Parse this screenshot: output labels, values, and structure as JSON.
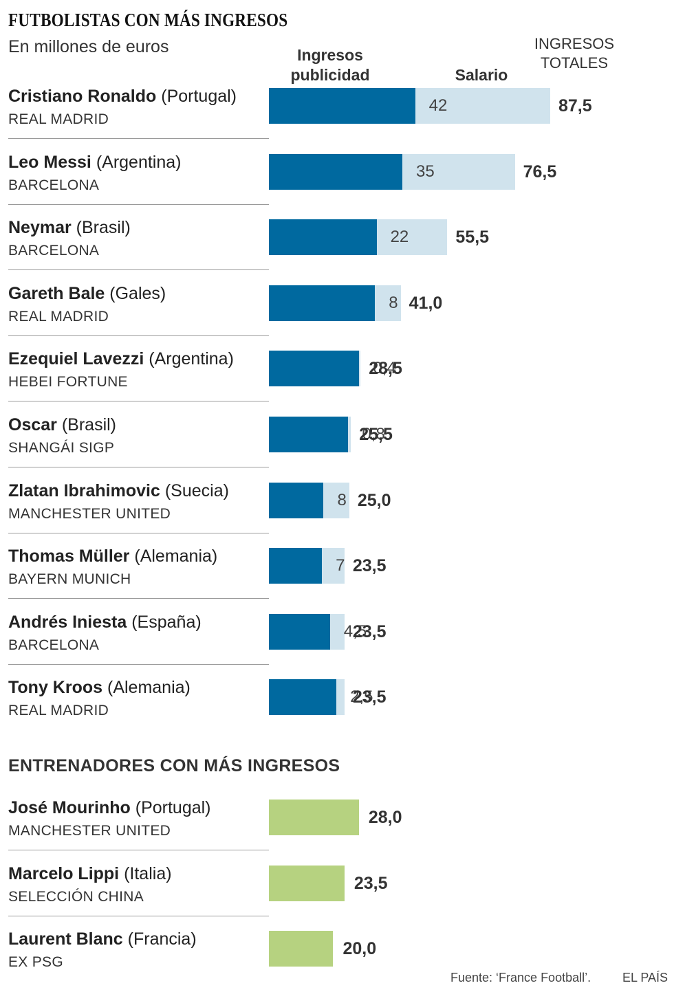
{
  "title": "FUTBOLISTAS CON MÁS INGRESOS",
  "subtitle": "En millones de euros",
  "legend": {
    "publicidad": "Ingresos\npublicidad",
    "salario": "Salario",
    "totales": "INGRESOS\nTOTALES"
  },
  "colors": {
    "publicidad": "#00699f",
    "salario": "#d0e3ed",
    "entrenadores": "#b6d280"
  },
  "coaches_title": "ENTRENADORES CON MÁS INGRESOS",
  "source": "Fuente: ‘France Football’.",
  "brand": "EL PAÍS",
  "chart_data": [
    {
      "type": "bar",
      "orientation": "horizontal",
      "stacked": true,
      "title": "FUTBOLISTAS CON MÁS INGRESOS",
      "series_names": [
        "Ingresos publicidad",
        "Salario"
      ],
      "rows": [
        {
          "name": "Cristiano Ronaldo",
          "country": "(Portugal)",
          "club": "REAL MADRID",
          "publicidad": 45.5,
          "salario": 42,
          "salario_label": "42",
          "total": 87.5,
          "total_label": "87,5"
        },
        {
          "name": "Leo Messi",
          "country": "(Argentina)",
          "club": "BARCELONA",
          "publicidad": 41.5,
          "salario": 35,
          "salario_label": "35",
          "total": 76.5,
          "total_label": "76,5"
        },
        {
          "name": "Neymar",
          "country": "(Brasil)",
          "club": "BARCELONA",
          "publicidad": 33.5,
          "salario": 22,
          "salario_label": "22",
          "total": 55.5,
          "total_label": "55,5"
        },
        {
          "name": "Gareth Bale",
          "country": "(Gales)",
          "club": "REAL MADRID",
          "publicidad": 33,
          "salario": 8,
          "salario_label": "8",
          "total": 41.0,
          "total_label": "41,0"
        },
        {
          "name": "Ezequiel Lavezzi",
          "country": "(Argentina)",
          "club": "HEBEI FORTUNE",
          "publicidad": 28.1,
          "salario": 0.4,
          "salario_label": "0,4",
          "total": 28.5,
          "total_label": "28,5"
        },
        {
          "name": "Oscar",
          "country": "(Brasil)",
          "club": "SHANGÁI SIGP",
          "publicidad": 24.7,
          "salario": 0.8,
          "salario_label": "0,8",
          "total": 25.5,
          "total_label": "25,5"
        },
        {
          "name": "Zlatan Ibrahimovic",
          "country": "(Suecia)",
          "club": "MANCHESTER UNITED",
          "publicidad": 17,
          "salario": 8,
          "salario_label": "8",
          "total": 25.0,
          "total_label": "25,0"
        },
        {
          "name": "Thomas Müller",
          "country": "(Alemania)",
          "club": "BAYERN MUNICH",
          "publicidad": 16.5,
          "salario": 7,
          "salario_label": "7",
          "total": 23.5,
          "total_label": "23,5"
        },
        {
          "name": "Andrés Iniesta",
          "country": "(España)",
          "club": "BARCELONA",
          "publicidad": 19,
          "salario": 4.5,
          "salario_label": "4,5",
          "total": 23.5,
          "total_label": "23,5"
        },
        {
          "name": "Tony Kroos",
          "country": "(Alemania)",
          "club": "REAL MADRID",
          "publicidad": 21,
          "salario": 2.5,
          "salario_label": "2,5",
          "total": 23.5,
          "total_label": "23,5"
        }
      ],
      "xlim": [
        0,
        87.5
      ]
    },
    {
      "type": "bar",
      "orientation": "horizontal",
      "title": "ENTRENADORES CON MÁS INGRESOS",
      "rows": [
        {
          "name": "José Mourinho",
          "country": "(Portugal)",
          "club": "MANCHESTER UNITED",
          "total": 28.0,
          "total_label": "28,0"
        },
        {
          "name": "Marcelo Lippi",
          "country": "(Italia)",
          "club": "SELECCIÓN CHINA",
          "total": 23.5,
          "total_label": "23,5"
        },
        {
          "name": "Laurent Blanc",
          "country": "(Francia)",
          "club": "EX PSG",
          "total": 20.0,
          "total_label": "20,0"
        }
      ],
      "xlim": [
        0,
        87.5
      ]
    }
  ]
}
